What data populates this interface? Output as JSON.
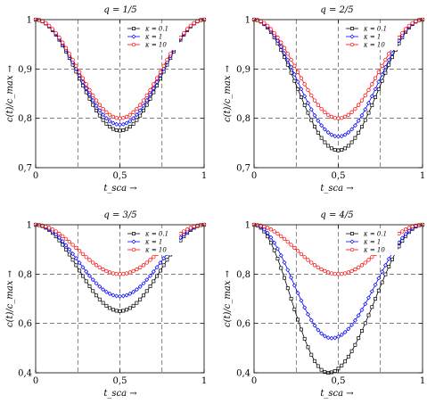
{
  "chart_data": [
    {
      "type": "line",
      "title": "q = 1/5",
      "xlabel": "t_sca →",
      "ylabel": "c(t)/c_max →",
      "xlim": [
        0,
        1
      ],
      "ylim": [
        0.7,
        1
      ],
      "xticks": [
        0,
        0.5,
        1
      ],
      "xtick_labels": [
        "0",
        "0,5",
        "1"
      ],
      "yticks": [
        0.7,
        0.8,
        0.9,
        1
      ],
      "ytick_labels": [
        "0,7",
        "0,8",
        "0,9",
        "1"
      ],
      "grid_x": [
        0.25,
        0.5,
        0.75
      ],
      "grid_y": [
        0.8,
        0.9
      ],
      "grid": "dashed",
      "legend_position": "top-right",
      "series": [
        {
          "name": "κ = 0.1",
          "color": "#000000",
          "marker": "square",
          "peak_x": 0.5,
          "min_value": 0.775
        },
        {
          "name": "κ = 1",
          "color": "#0000ff",
          "marker": "diamond",
          "peak_x": 0.5,
          "min_value": 0.787
        },
        {
          "name": "κ = 10",
          "color": "#ff0000",
          "marker": "circle",
          "peak_x": 0.5,
          "min_value": 0.8
        }
      ]
    },
    {
      "type": "line",
      "title": "q = 2/5",
      "xlabel": "t_sca →",
      "ylabel": "c(t)/c_max →",
      "xlim": [
        0,
        1
      ],
      "ylim": [
        0.7,
        1
      ],
      "xticks": [
        0,
        0.5,
        1
      ],
      "xtick_labels": [
        "0",
        "0,5",
        "1"
      ],
      "yticks": [
        0.7,
        0.8,
        0.9,
        1
      ],
      "ytick_labels": [
        "0,7",
        "0,8",
        "0,9",
        "1"
      ],
      "grid_x": [
        0.25,
        0.5,
        0.75
      ],
      "grid_y": [
        0.8,
        0.9
      ],
      "grid": "dashed",
      "legend_position": "top-right",
      "series": [
        {
          "name": "κ = 0.1",
          "color": "#000000",
          "marker": "square",
          "peak_x": 0.5,
          "min_value": 0.735
        },
        {
          "name": "κ = 1",
          "color": "#0000ff",
          "marker": "diamond",
          "peak_x": 0.5,
          "min_value": 0.763
        },
        {
          "name": "κ = 10",
          "color": "#ff0000",
          "marker": "circle",
          "peak_x": 0.5,
          "min_value": 0.8
        }
      ]
    },
    {
      "type": "line",
      "title": "q = 3/5",
      "xlabel": "t_sca →",
      "ylabel": "c(t)/c_max →",
      "xlim": [
        0,
        1
      ],
      "ylim": [
        0.4,
        1
      ],
      "xticks": [
        0,
        0.5,
        1
      ],
      "xtick_labels": [
        "0",
        "0,5",
        "1"
      ],
      "yticks": [
        0.4,
        0.6,
        0.8,
        1
      ],
      "ytick_labels": [
        "0,4",
        "0,6",
        "0,8",
        "1"
      ],
      "grid_x": [
        0.25,
        0.5,
        0.75
      ],
      "grid_y": [
        0.6,
        0.8
      ],
      "grid": "dashed",
      "legend_position": "top-right",
      "series": [
        {
          "name": "κ = 0.1",
          "color": "#000000",
          "marker": "square",
          "peak_x": 0.5,
          "min_value": 0.65
        },
        {
          "name": "κ = 1",
          "color": "#0000ff",
          "marker": "diamond",
          "peak_x": 0.5,
          "min_value": 0.71
        },
        {
          "name": "κ = 10",
          "color": "#ff0000",
          "marker": "circle",
          "peak_x": 0.5,
          "min_value": 0.8
        }
      ]
    },
    {
      "type": "line",
      "title": "q = 4/5",
      "xlabel": "t_sca →",
      "ylabel": "c(t)/c_max →",
      "xlim": [
        0,
        1
      ],
      "ylim": [
        0.4,
        1
      ],
      "xticks": [
        0,
        0.5,
        1
      ],
      "xtick_labels": [
        "0",
        "0,5",
        "1"
      ],
      "yticks": [
        0.4,
        0.6,
        0.8,
        1
      ],
      "ytick_labels": [
        "0,4",
        "0,6",
        "0,8",
        "1"
      ],
      "grid_x": [
        0.25,
        0.5,
        0.75
      ],
      "grid_y": [
        0.6,
        0.8
      ],
      "grid": "dashed",
      "legend_position": "top-right",
      "series": [
        {
          "name": "κ = 0.1",
          "color": "#000000",
          "marker": "square",
          "peak_x": 0.44,
          "min_value": 0.4
        },
        {
          "name": "κ = 1",
          "color": "#0000ff",
          "marker": "diamond",
          "peak_x": 0.46,
          "min_value": 0.54
        },
        {
          "name": "κ = 10",
          "color": "#ff0000",
          "marker": "circle",
          "peak_x": 0.5,
          "min_value": 0.8
        }
      ]
    }
  ]
}
